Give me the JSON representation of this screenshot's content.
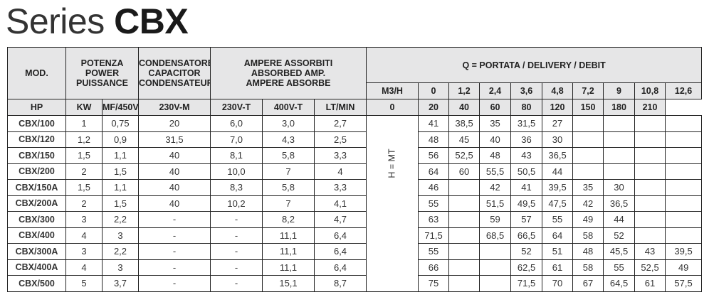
{
  "title": {
    "light": "Series",
    "bold": "CBX"
  },
  "table": {
    "header": {
      "mod": "MOD.",
      "power": [
        "POTENZA",
        "POWER",
        "PUISSANCE"
      ],
      "capacitor": [
        "CONDENSATORE",
        "CAPACITOR",
        "CONDENSATEUR"
      ],
      "amps": [
        "AMPERE ASSORBITI",
        "ABSORBED AMP.",
        "AMPERE ABSORBE"
      ],
      "delivery": "Q = PORTATA / DELIVERY / DEBIT",
      "m3h_label": "M3/H",
      "ltmin_label": "LT/MIN",
      "m3h": [
        "0",
        "1,2",
        "2,4",
        "3,6",
        "4,8",
        "7,2",
        "9",
        "10,8",
        "12,6"
      ],
      "ltmin": [
        "0",
        "20",
        "40",
        "60",
        "80",
        "120",
        "150",
        "180",
        "210"
      ],
      "units": [
        "HP",
        "KW",
        "MF/450V",
        "230V-M",
        "230V-T",
        "400V-T"
      ],
      "head_label": "H = MT"
    },
    "rows": [
      {
        "mod": "CBX/100",
        "hp": "1",
        "kw": "0,75",
        "mf": "20",
        "a230m": "6,0",
        "a230t": "3,0",
        "a400t": "2,7",
        "h": [
          "41",
          "38,5",
          "35",
          "31,5",
          "27",
          "",
          "",
          "",
          ""
        ]
      },
      {
        "mod": "CBX/120",
        "hp": "1,2",
        "kw": "0,9",
        "mf": "31,5",
        "a230m": "7,0",
        "a230t": "4,3",
        "a400t": "2,5",
        "h": [
          "48",
          "45",
          "40",
          "36",
          "30",
          "",
          "",
          "",
          ""
        ]
      },
      {
        "mod": "CBX/150",
        "hp": "1,5",
        "kw": "1,1",
        "mf": "40",
        "a230m": "8,1",
        "a230t": "5,8",
        "a400t": "3,3",
        "h": [
          "56",
          "52,5",
          "48",
          "43",
          "36,5",
          "",
          "",
          "",
          ""
        ]
      },
      {
        "mod": "CBX/200",
        "hp": "2",
        "kw": "1,5",
        "mf": "40",
        "a230m": "10,0",
        "a230t": "7",
        "a400t": "4",
        "h": [
          "64",
          "60",
          "55,5",
          "50,5",
          "44",
          "",
          "",
          "",
          ""
        ]
      },
      {
        "mod": "CBX/150A",
        "hp": "1,5",
        "kw": "1,1",
        "mf": "40",
        "a230m": "8,3",
        "a230t": "5,8",
        "a400t": "3,3",
        "h": [
          "46",
          "",
          "42",
          "41",
          "39,5",
          "35",
          "30",
          "",
          ""
        ]
      },
      {
        "mod": "CBX/200A",
        "hp": "2",
        "kw": "1,5",
        "mf": "40",
        "a230m": "10,2",
        "a230t": "7",
        "a400t": "4,1",
        "h": [
          "55",
          "",
          "51,5",
          "49,5",
          "47,5",
          "42",
          "36,5",
          "",
          ""
        ]
      },
      {
        "mod": "CBX/300",
        "hp": "3",
        "kw": "2,2",
        "mf": "-",
        "a230m": "-",
        "a230t": "8,2",
        "a400t": "4,7",
        "h": [
          "63",
          "",
          "59",
          "57",
          "55",
          "49",
          "44",
          "",
          ""
        ]
      },
      {
        "mod": "CBX/400",
        "hp": "4",
        "kw": "3",
        "mf": "-",
        "a230m": "-",
        "a230t": "11,1",
        "a400t": "6,4",
        "h": [
          "71,5",
          "",
          "68,5",
          "66,5",
          "64",
          "58",
          "52",
          "",
          ""
        ]
      },
      {
        "mod": "CBX/300A",
        "hp": "3",
        "kw": "2,2",
        "mf": "-",
        "a230m": "-",
        "a230t": "11,1",
        "a400t": "6,4",
        "h": [
          "55",
          "",
          "",
          "52",
          "51",
          "48",
          "45,5",
          "43",
          "39,5"
        ]
      },
      {
        "mod": "CBX/400A",
        "hp": "4",
        "kw": "3",
        "mf": "-",
        "a230m": "-",
        "a230t": "11,1",
        "a400t": "6,4",
        "h": [
          "66",
          "",
          "",
          "62,5",
          "61",
          "58",
          "55",
          "52,5",
          "49"
        ]
      },
      {
        "mod": "CBX/500",
        "hp": "5",
        "kw": "3,7",
        "mf": "-",
        "a230m": "-",
        "a230t": "15,1",
        "a400t": "8,7",
        "h": [
          "75",
          "",
          "",
          "71,5",
          "70",
          "67",
          "64,5",
          "61",
          "57,5"
        ]
      }
    ]
  }
}
